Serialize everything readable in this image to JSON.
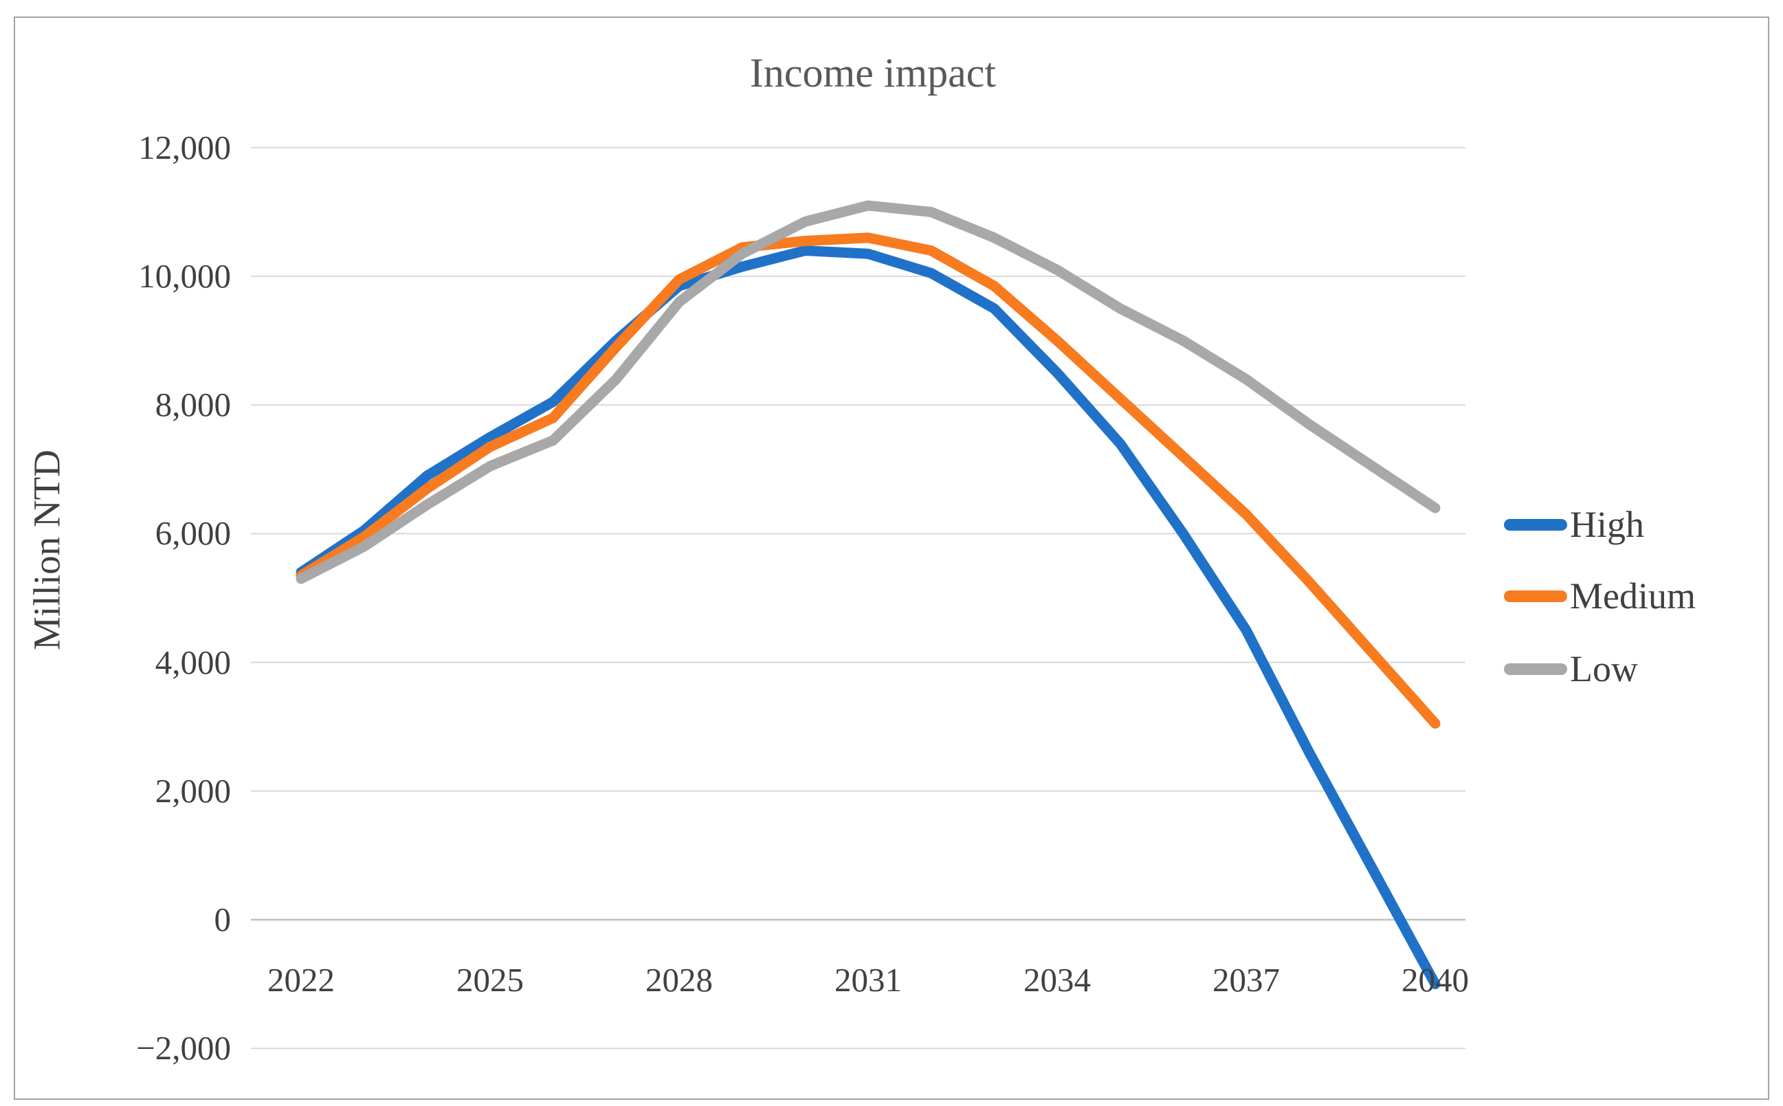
{
  "colors": {
    "high": "#1f72c8",
    "medium": "#f87b20",
    "low": "#a8a8a8",
    "gridline": "#d9d9d9",
    "zero_axis": "#bfbfbf",
    "text": "#404040",
    "title_text": "#595959",
    "panel_border": "#a3a3a3",
    "background": "#ffffff"
  },
  "chart_data": {
    "type": "line",
    "title": "Income impact",
    "xlabel": "",
    "ylabel": "Million NTD",
    "ylim": [
      -2000,
      12000
    ],
    "xlim": [
      2022,
      2040
    ],
    "grid": "horizontal",
    "legend_position": "right",
    "x": [
      2022,
      2023,
      2024,
      2025,
      2026,
      2027,
      2028,
      2029,
      2030,
      2031,
      2032,
      2033,
      2034,
      2035,
      2036,
      2037,
      2038,
      2039,
      2040
    ],
    "xtick_labels": [
      "2022",
      "2025",
      "2028",
      "2031",
      "2034",
      "2037",
      "2040"
    ],
    "yticks": [
      {
        "label": "12,000",
        "value": 12000
      },
      {
        "label": "10,000",
        "value": 10000
      },
      {
        "label": "8,000",
        "value": 8000
      },
      {
        "label": "6,000",
        "value": 6000
      },
      {
        "label": "4,000",
        "value": 4000
      },
      {
        "label": "2,000",
        "value": 2000
      },
      {
        "label": "0",
        "value": 0
      },
      {
        "label": "−2,000",
        "value": -2000
      }
    ],
    "series": [
      {
        "name": "High",
        "color": "#1f72c8",
        "values": [
          5400,
          6050,
          6900,
          7500,
          8050,
          9000,
          9850,
          10150,
          10400,
          10350,
          10050,
          9500,
          8500,
          7400,
          6000,
          4500,
          2600,
          800,
          -1000
        ]
      },
      {
        "name": "Medium",
        "color": "#f87b20",
        "values": [
          5350,
          5950,
          6700,
          7350,
          7800,
          8900,
          9950,
          10450,
          10550,
          10600,
          10400,
          9850,
          9000,
          8100,
          7200,
          6300,
          5250,
          4150,
          3050
        ]
      },
      {
        "name": "Low",
        "color": "#a8a8a8",
        "values": [
          5300,
          5800,
          6450,
          7050,
          7450,
          8400,
          9600,
          10350,
          10850,
          11100,
          11000,
          10600,
          10100,
          9500,
          9000,
          8400,
          7700,
          7050,
          6400
        ]
      }
    ]
  }
}
